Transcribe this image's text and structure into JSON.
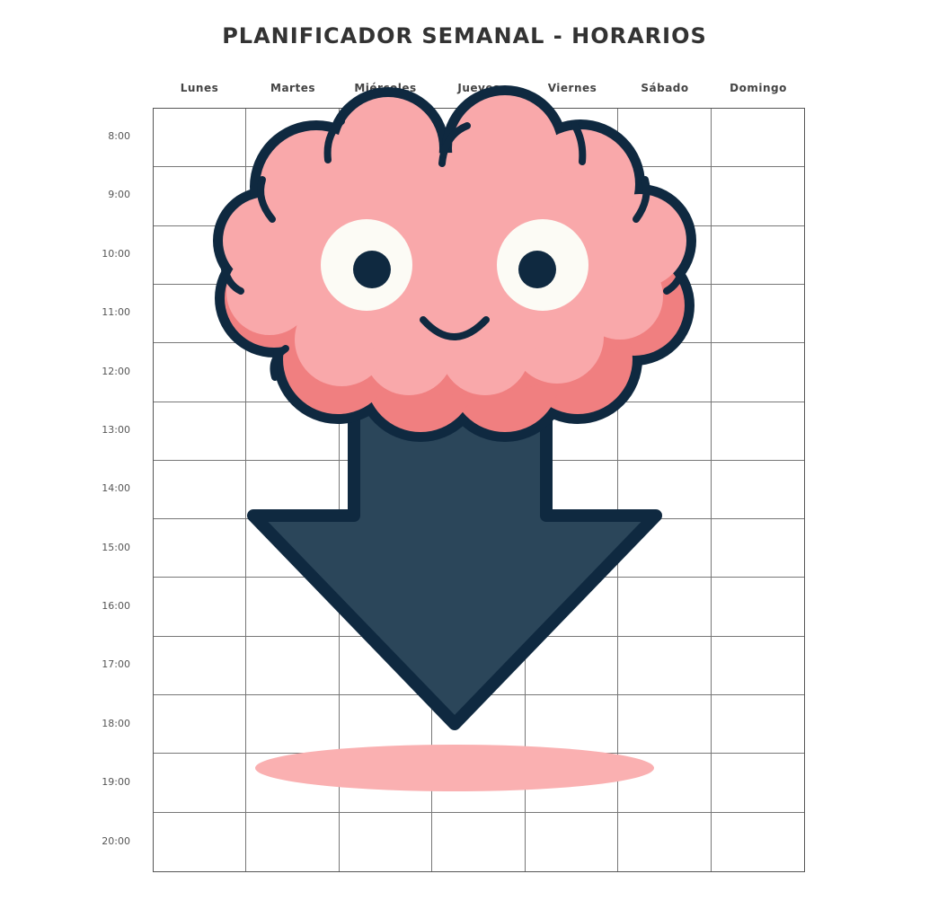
{
  "planner": {
    "title": "PLANIFICADOR SEMANAL - HORARIOS",
    "days": [
      "Lunes",
      "Martes",
      "Miércoles",
      "Jueves",
      "Viernes",
      "Sábado",
      "Domingo"
    ],
    "hours": [
      "8:00",
      "9:00",
      "10:00",
      "11:00",
      "12:00",
      "13:00",
      "14:00",
      "15:00",
      "16:00",
      "17:00",
      "18:00",
      "19:00",
      "20:00"
    ]
  },
  "illustration": {
    "subject": "smiling brain with downward arrow",
    "icons": [
      "brain-mascot-icon",
      "arrow-down-icon"
    ],
    "colors": {
      "brain": "#F9A8AA",
      "brain_shadow": "#F07F80",
      "outline": "#0F2940",
      "arrow": "#2B465A",
      "eye_white": "#FCFBF5",
      "shadow": "#FAB0B1"
    }
  }
}
